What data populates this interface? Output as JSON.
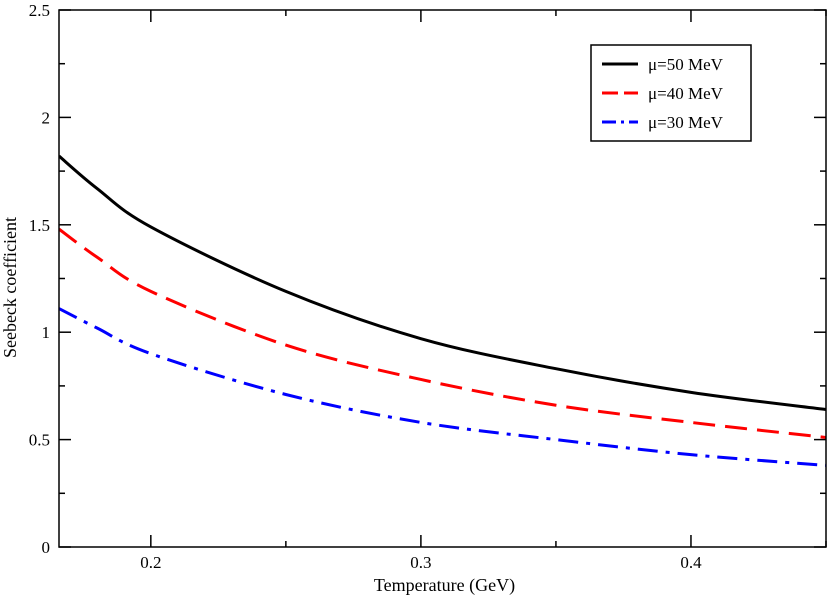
{
  "chart_data": {
    "type": "line",
    "title": "",
    "xlabel": "Temperature (GeV)",
    "ylabel": "Seebeck coefficient",
    "xlim": [
      0.166,
      0.45
    ],
    "ylim": [
      0,
      2.5
    ],
    "x_ticks": [
      0.2,
      0.3,
      0.4
    ],
    "x_tick_labels": [
      "0.2",
      "0.3",
      "0.4"
    ],
    "y_ticks": [
      0,
      0.5,
      1,
      1.5,
      2,
      2.5
    ],
    "y_tick_labels": [
      "0",
      "0.5",
      "1",
      "1.5",
      "2",
      "2.5"
    ],
    "grid": false,
    "legend_position": "top-right",
    "series": [
      {
        "name": "μ=50 MeV",
        "color": "#000000",
        "dash": "solid",
        "x": [
          0.166,
          0.18,
          0.2,
          0.25,
          0.3,
          0.35,
          0.4,
          0.45
        ],
        "y": [
          1.82,
          1.67,
          1.49,
          1.19,
          0.97,
          0.83,
          0.72,
          0.64
        ]
      },
      {
        "name": "μ=40 MeV",
        "color": "#ff0000",
        "dash": "dash",
        "x": [
          0.166,
          0.18,
          0.2,
          0.25,
          0.3,
          0.35,
          0.4,
          0.45
        ],
        "y": [
          1.48,
          1.35,
          1.19,
          0.94,
          0.78,
          0.66,
          0.58,
          0.51
        ]
      },
      {
        "name": "μ=30 MeV",
        "color": "#0000ff",
        "dash": "dashdot",
        "x": [
          0.166,
          0.18,
          0.2,
          0.25,
          0.3,
          0.35,
          0.4,
          0.45
        ],
        "y": [
          1.11,
          1.02,
          0.9,
          0.71,
          0.58,
          0.5,
          0.43,
          0.38
        ]
      }
    ]
  }
}
